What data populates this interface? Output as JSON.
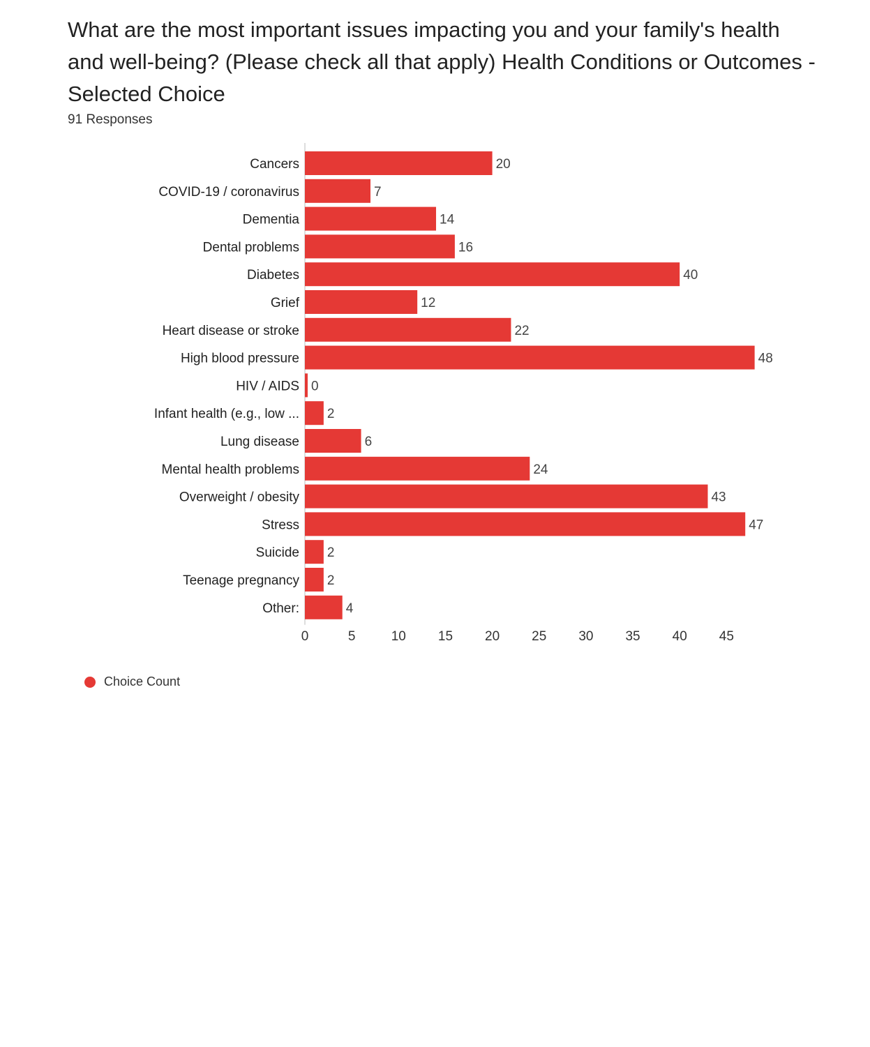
{
  "chart_data": {
    "type": "bar",
    "orientation": "horizontal",
    "title": "What are the most important issues impacting you and your family's health and well-being? (Please check all that apply) Health Conditions or Outcomes - Selected Choice",
    "subtitle": "91 Responses",
    "categories": [
      "Cancers",
      "COVID-19 / coronavirus",
      "Dementia",
      "Dental problems",
      "Diabetes",
      "Grief",
      "Heart disease or stroke",
      "High blood pressure",
      "HIV / AIDS",
      "Infant health (e.g., low ...",
      "Lung disease",
      "Mental health problems",
      "Overweight / obesity",
      "Stress",
      "Suicide",
      "Teenage pregnancy",
      "Other:"
    ],
    "series": [
      {
        "name": "Choice Count",
        "values": [
          20,
          7,
          14,
          16,
          40,
          12,
          22,
          48,
          0,
          2,
          6,
          24,
          43,
          47,
          2,
          2,
          4
        ]
      }
    ],
    "xticks": [
      0,
      5,
      10,
      15,
      20,
      25,
      30,
      35,
      40,
      45
    ],
    "xlim": [
      0,
      48
    ],
    "xlabel": "",
    "ylabel": "",
    "grid": false,
    "legend_position": "bottom-left",
    "colors": {
      "bar": "#e53935",
      "value_label": "#444444",
      "category_label": "#222222",
      "tick_label": "#333333",
      "axis_line": "#dddddd"
    }
  }
}
